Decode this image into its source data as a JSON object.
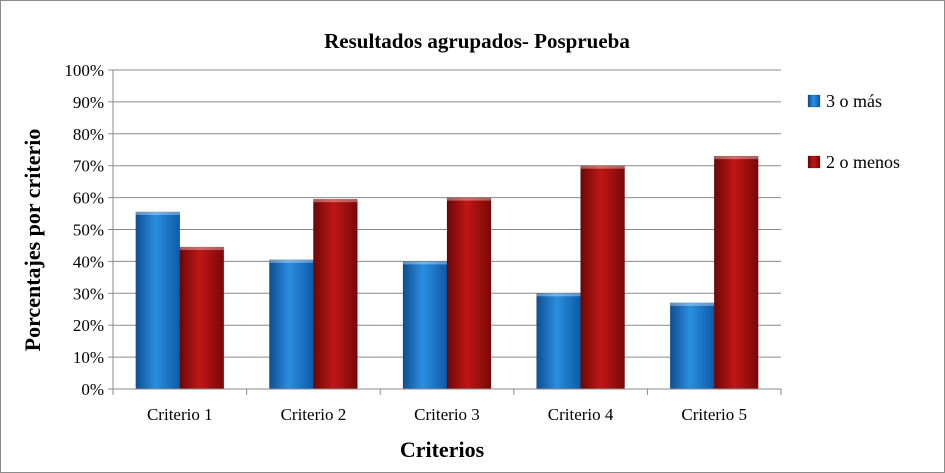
{
  "chart_data": {
    "type": "bar",
    "title": "Resultados agrupados- Posprueba",
    "xlabel": "Criterios",
    "ylabel": "Porcentajes por criterio",
    "categories": [
      "Criterio 1",
      "Criterio 2",
      "Criterio 3",
      "Criterio 4",
      "Criterio 5"
    ],
    "series": [
      {
        "name": "3 o más",
        "values": [
          55.5,
          40.5,
          40,
          30,
          27
        ],
        "color": "#1f77c9"
      },
      {
        "name": "2 o menos",
        "values": [
          44.5,
          59.5,
          60,
          70,
          73
        ],
        "color": "#b01010"
      }
    ],
    "ylim": [
      0,
      100
    ],
    "yticks": [
      "0%",
      "10%",
      "20%",
      "30%",
      "40%",
      "50%",
      "60%",
      "70%",
      "80%",
      "90%",
      "100%"
    ],
    "grid": true,
    "legend_position": "right"
  }
}
